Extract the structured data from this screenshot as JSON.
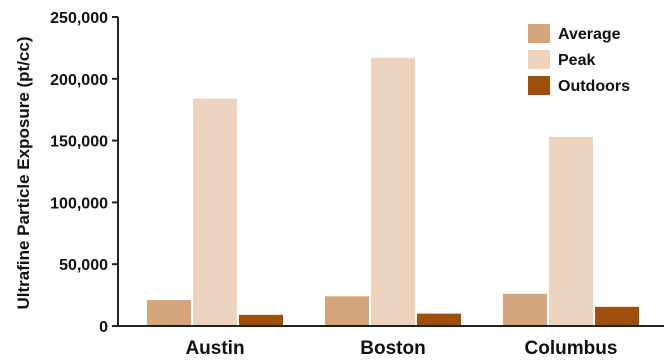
{
  "chart_data": {
    "type": "bar",
    "title": "",
    "xlabel": "",
    "ylabel": "Ultrafine Particle Exposure (pt/cc)",
    "ylim": [
      0,
      250000
    ],
    "yticks": [
      0,
      50000,
      100000,
      150000,
      200000,
      250000
    ],
    "ytick_labels": [
      "0",
      "50,000",
      "100,000",
      "150,000",
      "200,000",
      "250,000"
    ],
    "categories": [
      "Austin",
      "Boston",
      "Columbus"
    ],
    "series": [
      {
        "name": "Average",
        "color": "#d4a47a",
        "values": [
          21000,
          24000,
          26000
        ]
      },
      {
        "name": "Peak",
        "color": "#edd2bd",
        "values": [
          184000,
          217000,
          153000
        ]
      },
      {
        "name": "Outdoors",
        "color": "#9e4f0a",
        "values": [
          9000,
          10000,
          15500
        ]
      }
    ],
    "grid": false,
    "legend_position": "top-right"
  }
}
